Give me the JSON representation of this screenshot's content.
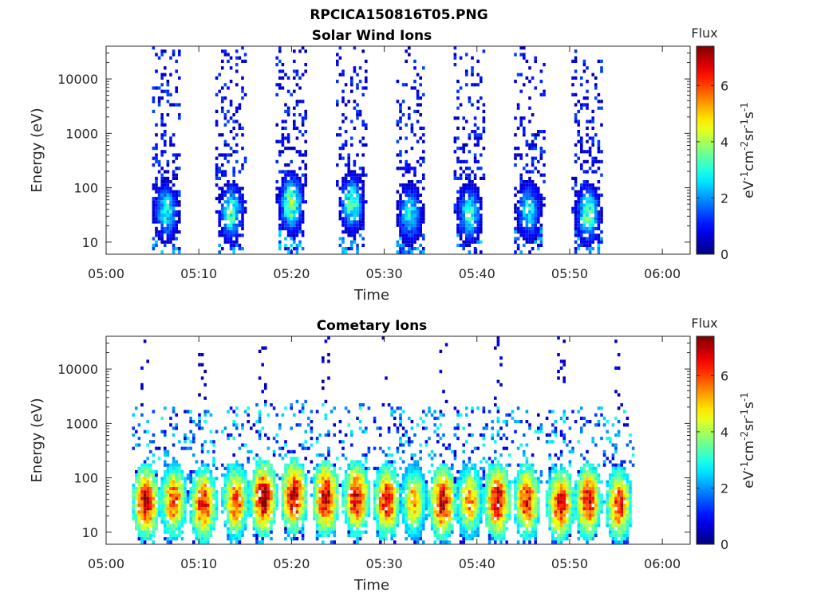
{
  "figure_title": "RPCICA150816T05.PNG",
  "chart_data": [
    {
      "type": "heatmap",
      "title": "Solar Wind Ions",
      "xlabel": "Time",
      "ylabel": "Energy (eV)",
      "x_ticks": [
        "05:00",
        "05:10",
        "05:20",
        "05:30",
        "05:40",
        "05:50",
        "06:00"
      ],
      "xlim_minutes": [
        0,
        63
      ],
      "y_scale": "log",
      "y_ticks": [
        "10",
        "100",
        "1000",
        "10000"
      ],
      "ylim": [
        6,
        40000
      ],
      "colorbar": {
        "title": "Flux",
        "label_parts": [
          "eV",
          "-1",
          "cm",
          "-2",
          "sr",
          "-1",
          "s",
          "-1"
        ],
        "ticks": [
          "0",
          "2",
          "4",
          "6"
        ],
        "range": [
          0,
          7.4
        ],
        "colormap": "jet"
      },
      "bursts": [
        {
          "center_minute": 6.5,
          "peak_energy_eV": 40,
          "peak_flux": 3.2
        },
        {
          "center_minute": 13.5,
          "peak_energy_eV": 38,
          "peak_flux": 3.5
        },
        {
          "center_minute": 20.0,
          "peak_energy_eV": 55,
          "peak_flux": 4.0
        },
        {
          "center_minute": 26.5,
          "peak_energy_eV": 55,
          "peak_flux": 3.5
        },
        {
          "center_minute": 32.8,
          "peak_energy_eV": 35,
          "peak_flux": 3.0
        },
        {
          "center_minute": 39.2,
          "peak_energy_eV": 35,
          "peak_flux": 3.3
        },
        {
          "center_minute": 45.6,
          "peak_energy_eV": 40,
          "peak_flux": 3.0
        },
        {
          "center_minute": 52.0,
          "peak_energy_eV": 35,
          "peak_flux": 3.7
        }
      ]
    },
    {
      "type": "heatmap",
      "title": "Cometary Ions",
      "xlabel": "Time",
      "ylabel": "Energy (eV)",
      "x_ticks": [
        "05:00",
        "05:10",
        "05:20",
        "05:30",
        "05:40",
        "05:50",
        "06:00"
      ],
      "xlim_minutes": [
        0,
        63
      ],
      "y_scale": "log",
      "y_ticks": [
        "10",
        "100",
        "1000",
        "10000"
      ],
      "ylim": [
        6,
        40000
      ],
      "colorbar": {
        "title": "Flux",
        "label_parts": [
          "eV",
          "-1",
          "cm",
          "-2",
          "sr",
          "-1",
          "s",
          "-1"
        ],
        "ticks": [
          "0",
          "2",
          "4",
          "6"
        ],
        "range": [
          0,
          7.4
        ],
        "colormap": "jet"
      },
      "bursts": [
        {
          "center_minute": 4.3,
          "peak_energy_eV": 38,
          "peak_flux": 6.8
        },
        {
          "center_minute": 7.3,
          "peak_energy_eV": 40,
          "peak_flux": 6.0
        },
        {
          "center_minute": 10.5,
          "peak_energy_eV": 35,
          "peak_flux": 6.3
        },
        {
          "center_minute": 14.0,
          "peak_energy_eV": 40,
          "peak_flux": 6.0
        },
        {
          "center_minute": 17.0,
          "peak_energy_eV": 45,
          "peak_flux": 7.1
        },
        {
          "center_minute": 20.3,
          "peak_energy_eV": 50,
          "peak_flux": 6.9
        },
        {
          "center_minute": 23.7,
          "peak_energy_eV": 45,
          "peak_flux": 6.9
        },
        {
          "center_minute": 27.0,
          "peak_energy_eV": 45,
          "peak_flux": 6.6
        },
        {
          "center_minute": 30.3,
          "peak_energy_eV": 40,
          "peak_flux": 6.4
        },
        {
          "center_minute": 33.2,
          "peak_energy_eV": 40,
          "peak_flux": 5.2
        },
        {
          "center_minute": 36.3,
          "peak_energy_eV": 38,
          "peak_flux": 6.8
        },
        {
          "center_minute": 39.2,
          "peak_energy_eV": 40,
          "peak_flux": 5.4
        },
        {
          "center_minute": 42.2,
          "peak_energy_eV": 40,
          "peak_flux": 6.8
        },
        {
          "center_minute": 45.4,
          "peak_energy_eV": 40,
          "peak_flux": 6.3
        },
        {
          "center_minute": 49.0,
          "peak_energy_eV": 35,
          "peak_flux": 6.5
        },
        {
          "center_minute": 52.0,
          "peak_energy_eV": 40,
          "peak_flux": 6.5
        },
        {
          "center_minute": 55.3,
          "peak_energy_eV": 35,
          "peak_flux": 6.2
        }
      ]
    }
  ]
}
